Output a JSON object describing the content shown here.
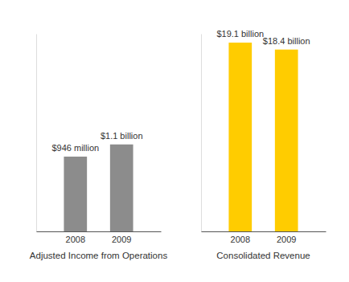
{
  "chart_data": [
    {
      "type": "bar",
      "title": "Adjusted Income from Operations",
      "categories": [
        "2008",
        "2009"
      ],
      "values": [
        946,
        1100
      ],
      "value_labels": [
        "$946 million",
        "$1.1 billion"
      ],
      "color": "#8c8c8c",
      "ylim": [
        0,
        2500
      ],
      "tick_labels": "x",
      "data_labels": true
    },
    {
      "type": "bar",
      "title": "Consolidated Revenue",
      "categories": [
        "2008",
        "2009"
      ],
      "values": [
        19.1,
        18.4
      ],
      "value_labels": [
        "$19.1 billion",
        "$18.4 billion"
      ],
      "color": "#ffcc00",
      "ylim": [
        0,
        20
      ],
      "tick_labels": "x",
      "data_labels": true
    }
  ]
}
